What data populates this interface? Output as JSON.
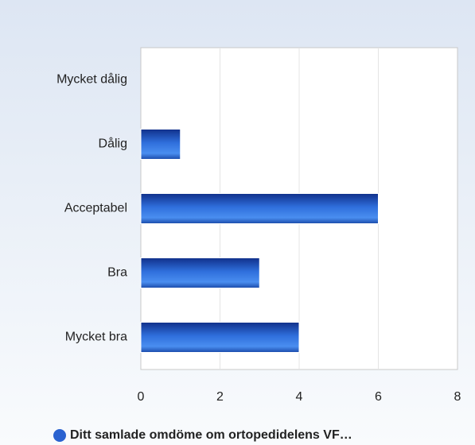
{
  "chart_data": {
    "type": "hbar",
    "categories": [
      "Mycket dålig",
      "Dålig",
      "Acceptabel",
      "Bra",
      "Mycket bra"
    ],
    "series": [
      {
        "name": "Ditt samlade omdöme om ortopedidelens VF…",
        "color": "#2a62d0",
        "values": [
          0,
          1,
          6,
          3,
          4
        ]
      }
    ],
    "xlim": [
      0,
      8
    ],
    "xticks": [
      0,
      2,
      4,
      6,
      8
    ],
    "grid": true,
    "legend": "bottom"
  }
}
